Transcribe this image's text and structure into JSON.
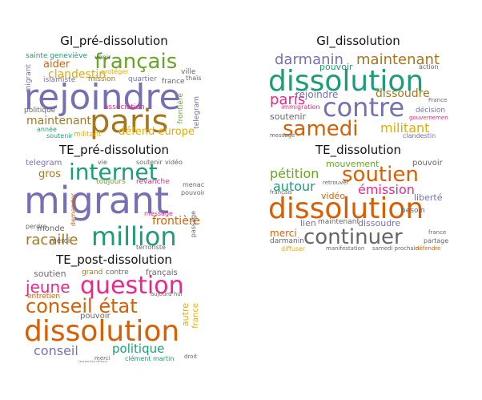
{
  "colors": {
    "orange": "#d95f02",
    "teal": "#1b9e77",
    "purple": "#7570b3",
    "pink": "#e7298a",
    "green": "#66a61e",
    "gold": "#e6ab02",
    "brown": "#a6761d",
    "gray": "#666666"
  },
  "panels": [
    {
      "title": "GI_pré-dissolution",
      "words": [
        {
          "t": "rejoindre",
          "c": "purple"
        },
        {
          "t": "paris",
          "c": "brown"
        },
        {
          "t": "français",
          "c": "green"
        },
        {
          "t": "maintenant",
          "c": "brown"
        },
        {
          "t": "clandestin",
          "c": "gold"
        },
        {
          "t": "défend europe",
          "c": "gold"
        },
        {
          "t": "aider",
          "c": "orange"
        },
        {
          "t": "islamiste",
          "c": "purple"
        },
        {
          "t": "politique",
          "c": "gray"
        },
        {
          "t": "mission",
          "c": "brown"
        },
        {
          "t": "quartier",
          "c": "purple"
        },
        {
          "t": "association",
          "c": "pink"
        },
        {
          "t": "sainte geneviève",
          "c": "teal"
        },
        {
          "t": "migrant",
          "c": "purple"
        },
        {
          "t": "france",
          "c": "gray"
        },
        {
          "t": "soutenir",
          "c": "teal"
        },
        {
          "t": "militant",
          "c": "gold"
        },
        {
          "t": "année",
          "c": "teal"
        },
        {
          "t": "ville",
          "c": "gray"
        },
        {
          "t": "frontière",
          "c": "green"
        },
        {
          "t": "venir",
          "c": "gray"
        },
        {
          "t": "protéger",
          "c": "gold"
        },
        {
          "t": "thaïs",
          "c": "gray"
        },
        {
          "t": "telegram",
          "c": "purple"
        }
      ]
    },
    {
      "title": "GI_dissolution",
      "words": [
        {
          "t": "dissolution",
          "c": "teal"
        },
        {
          "t": "contre",
          "c": "purple"
        },
        {
          "t": "samedi",
          "c": "orange"
        },
        {
          "t": "darmanin",
          "c": "purple"
        },
        {
          "t": "maintenant",
          "c": "brown"
        },
        {
          "t": "paris",
          "c": "pink"
        },
        {
          "t": "rejoindre",
          "c": "purple"
        },
        {
          "t": "dissoudre",
          "c": "brown"
        },
        {
          "t": "militant",
          "c": "gold"
        },
        {
          "t": "soutenir",
          "c": "gray"
        },
        {
          "t": "pouvoir",
          "c": "teal"
        },
        {
          "t": "immigration",
          "c": "pink"
        },
        {
          "t": "décision",
          "c": "purple"
        },
        {
          "t": "gouvernement",
          "c": "pink"
        },
        {
          "t": "action",
          "c": "gray"
        },
        {
          "t": "clandestin",
          "c": "purple"
        },
        {
          "t": "message",
          "c": "gray"
        },
        {
          "t": "France",
          "c": "gray"
        }
      ]
    },
    {
      "title": "TE_pré-dissolution",
      "words": [
        {
          "t": "migrant",
          "c": "purple"
        },
        {
          "t": "internet",
          "c": "teal"
        },
        {
          "t": "million",
          "c": "teal"
        },
        {
          "t": "racaille",
          "c": "brown"
        },
        {
          "t": "frontière",
          "c": "orange"
        },
        {
          "t": "telegram",
          "c": "purple"
        },
        {
          "t": "gros",
          "c": "brown"
        },
        {
          "t": "monde",
          "c": "gray"
        },
        {
          "t": "perdre",
          "c": "gray"
        },
        {
          "t": "merci",
          "c": "gray"
        },
        {
          "t": "toujours",
          "c": "green"
        },
        {
          "t": "revanche",
          "c": "pink"
        },
        {
          "t": "vidéo",
          "c": "gray"
        },
        {
          "t": "vie",
          "c": "gray"
        },
        {
          "t": "soutenir",
          "c": "gray"
        },
        {
          "t": "message",
          "c": "pink"
        },
        {
          "t": "passage",
          "c": "gray"
        },
        {
          "t": "menace",
          "c": "gray"
        },
        {
          "t": "pouvoir",
          "c": "gray"
        },
        {
          "t": "terroriste",
          "c": "gray"
        },
        {
          "t": "demander",
          "c": "orange"
        }
      ]
    },
    {
      "title": "TE_dissolution",
      "words": [
        {
          "t": "dissolution",
          "c": "orange"
        },
        {
          "t": "continuer",
          "c": "gray"
        },
        {
          "t": "soutien",
          "c": "orange"
        },
        {
          "t": "pétition",
          "c": "green"
        },
        {
          "t": "autour",
          "c": "teal"
        },
        {
          "t": "émission",
          "c": "pink"
        },
        {
          "t": "mouvement",
          "c": "green"
        },
        {
          "t": "pouvoir",
          "c": "gray"
        },
        {
          "t": "vidéo",
          "c": "orange"
        },
        {
          "t": "dissoudre",
          "c": "purple"
        },
        {
          "t": "lien",
          "c": "purple"
        },
        {
          "t": "maintenant",
          "c": "gray"
        },
        {
          "t": "merci",
          "c": "orange"
        },
        {
          "t": "besoin",
          "c": "gray"
        },
        {
          "t": "liberté",
          "c": "purple"
        },
        {
          "t": "darmanin",
          "c": "gray"
        },
        {
          "t": "diffuser",
          "c": "gold"
        },
        {
          "t": "manifestation",
          "c": "gray"
        },
        {
          "t": "samedi prochain",
          "c": "gray"
        },
        {
          "t": "défendre",
          "c": "orange"
        },
        {
          "t": "partager",
          "c": "gray"
        },
        {
          "t": "france",
          "c": "gray"
        },
        {
          "t": "retrouver",
          "c": "gray"
        },
        {
          "t": "français",
          "c": "gray"
        }
      ]
    },
    {
      "title": "TE_post-dissolution",
      "words": [
        {
          "t": "dissolution",
          "c": "orange"
        },
        {
          "t": "question",
          "c": "pink"
        },
        {
          "t": "conseil état",
          "c": "orange"
        },
        {
          "t": "jeune",
          "c": "pink"
        },
        {
          "t": "conseil",
          "c": "purple"
        },
        {
          "t": "politique",
          "c": "teal"
        },
        {
          "t": "soutien",
          "c": "gray"
        },
        {
          "t": "grand",
          "c": "brown"
        },
        {
          "t": "contre",
          "c": "gray"
        },
        {
          "t": "français",
          "c": "gray"
        },
        {
          "t": "entretien",
          "c": "orange"
        },
        {
          "t": "pouvoir",
          "c": "gray"
        },
        {
          "t": "autre",
          "c": "gold"
        },
        {
          "t": "france",
          "c": "gold"
        },
        {
          "t": "clément martin",
          "c": "teal"
        },
        {
          "t": "immigration",
          "c": "gray"
        },
        {
          "t": "aujourd hui",
          "c": "gray"
        },
        {
          "t": "droit",
          "c": "gray"
        },
        {
          "t": "merci",
          "c": "gray"
        }
      ]
    }
  ]
}
